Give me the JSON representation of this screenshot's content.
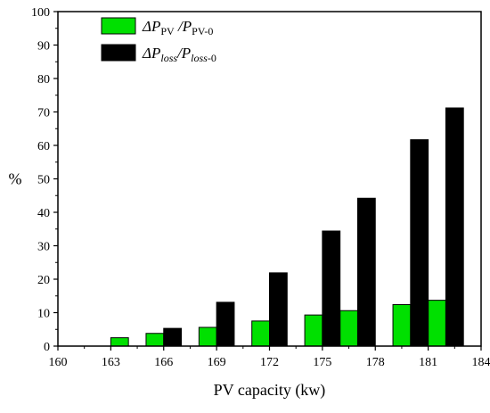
{
  "chart_data": {
    "type": "bar",
    "xlabel": "PV capacity (kw)",
    "ylabel": "%",
    "x_ticks": [
      "160",
      "163",
      "166",
      "169",
      "172",
      "175",
      "178",
      "181",
      "184"
    ],
    "y_ticks": [
      "0",
      "10",
      "20",
      "30",
      "40",
      "50",
      "60",
      "70",
      "80",
      "90",
      "100"
    ],
    "xlim": [
      160,
      184
    ],
    "ylim": [
      0,
      100
    ],
    "categories": [
      "163",
      "166",
      "169",
      "172",
      "175",
      "178",
      "181"
    ],
    "series": [
      {
        "name": "ΔPPV /PPV-0",
        "color": "#00e000",
        "values": [
          2.5,
          3.8,
          5.6,
          7.5,
          9.3,
          10.6,
          12.4,
          13.7
        ],
        "x": [
          163.5,
          165.5,
          168.5,
          171.5,
          174.5,
          176.5,
          179.5,
          181.5
        ]
      },
      {
        "name": "ΔPloss/Ploss-0",
        "color": "#000000",
        "values": [
          5.3,
          13.1,
          21.9,
          34.4,
          44.2,
          61.7,
          71.2
        ],
        "x": [
          166.5,
          169.5,
          172.5,
          175.5,
          177.5,
          180.5,
          182.5
        ]
      }
    ],
    "legend": {
      "position": "top-left",
      "entries": [
        {
          "main": "ΔP",
          "sub": "PV",
          "mid": " /P",
          "sub2": "PV-0"
        },
        {
          "main": "ΔP",
          "sub": "loss",
          "mid": "/P",
          "sub2": "loss",
          "tail": "-0"
        }
      ]
    },
    "grid": false
  }
}
